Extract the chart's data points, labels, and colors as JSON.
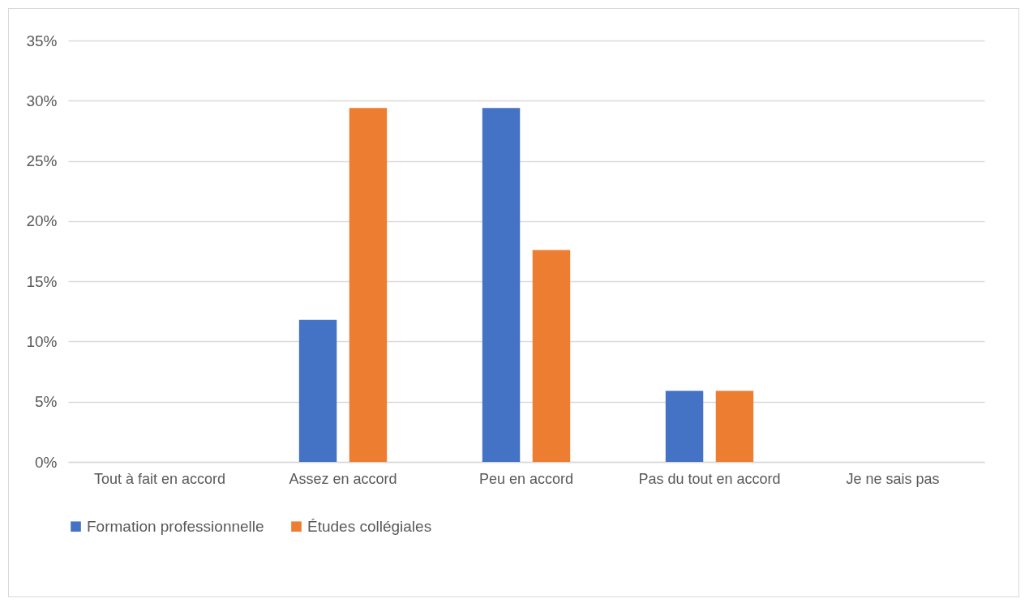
{
  "chart_data": {
    "type": "bar",
    "categories": [
      "Tout à fait en accord",
      "Assez en accord",
      "Peu en accord",
      "Pas du tout en accord",
      "Je ne sais pas"
    ],
    "series": [
      {
        "name": "Formation professionnelle",
        "color": "#4472c4",
        "values": [
          0,
          11.8,
          29.4,
          5.9,
          0
        ]
      },
      {
        "name": "Études collégiales",
        "color": "#ed7d31",
        "values": [
          0,
          29.4,
          17.6,
          5.9,
          0
        ]
      }
    ],
    "ylim": [
      0,
      35
    ],
    "yticks": [
      {
        "value": 0,
        "label": "0%"
      },
      {
        "value": 5,
        "label": "5%"
      },
      {
        "value": 10,
        "label": "10%"
      },
      {
        "value": 15,
        "label": "15%"
      },
      {
        "value": 20,
        "label": "20%"
      },
      {
        "value": 25,
        "label": "25%"
      },
      {
        "value": 30,
        "label": "30%"
      },
      {
        "value": 35,
        "label": "35%"
      }
    ],
    "grid": "y",
    "legend": "bottom"
  }
}
